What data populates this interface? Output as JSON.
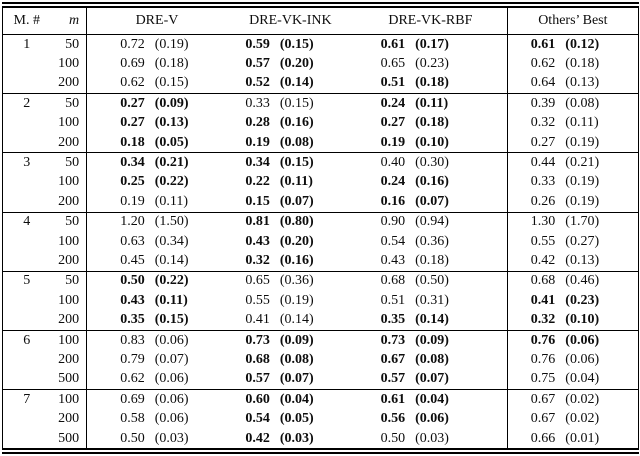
{
  "table": {
    "header": {
      "model_col": "M. #",
      "m_col": "m",
      "methods": [
        "DRE-V",
        "DRE-VK-INK",
        "DRE-VK-RBF"
      ],
      "others_col": "Others’ Best"
    },
    "groups": [
      {
        "model": "1",
        "rows": [
          {
            "m": "50",
            "cells": [
              {
                "value": "0.72",
                "std": "(0.19)",
                "bold": false
              },
              {
                "value": "0.59",
                "std": "(0.15)",
                "bold": true
              },
              {
                "value": "0.61",
                "std": "(0.17)",
                "bold": true
              },
              {
                "value": "0.61",
                "std": "(0.12)",
                "bold": true
              }
            ]
          },
          {
            "m": "100",
            "cells": [
              {
                "value": "0.69",
                "std": "(0.18)",
                "bold": false
              },
              {
                "value": "0.57",
                "std": "(0.20)",
                "bold": true
              },
              {
                "value": "0.65",
                "std": "(0.23)",
                "bold": false
              },
              {
                "value": "0.62",
                "std": "(0.18)",
                "bold": false
              }
            ]
          },
          {
            "m": "200",
            "cells": [
              {
                "value": "0.62",
                "std": "(0.15)",
                "bold": false
              },
              {
                "value": "0.52",
                "std": "(0.14)",
                "bold": true
              },
              {
                "value": "0.51",
                "std": "(0.18)",
                "bold": true
              },
              {
                "value": "0.64",
                "std": "(0.13)",
                "bold": false
              }
            ]
          }
        ]
      },
      {
        "model": "2",
        "rows": [
          {
            "m": "50",
            "cells": [
              {
                "value": "0.27",
                "std": "(0.09)",
                "bold": true
              },
              {
                "value": "0.33",
                "std": "(0.15)",
                "bold": false
              },
              {
                "value": "0.24",
                "std": "(0.11)",
                "bold": true
              },
              {
                "value": "0.39",
                "std": "(0.08)",
                "bold": false
              }
            ]
          },
          {
            "m": "100",
            "cells": [
              {
                "value": "0.27",
                "std": "(0.13)",
                "bold": true
              },
              {
                "value": "0.28",
                "std": "(0.16)",
                "bold": true
              },
              {
                "value": "0.27",
                "std": "(0.18)",
                "bold": true
              },
              {
                "value": "0.32",
                "std": "(0.11)",
                "bold": false
              }
            ]
          },
          {
            "m": "200",
            "cells": [
              {
                "value": "0.18",
                "std": "(0.05)",
                "bold": true
              },
              {
                "value": "0.19",
                "std": "(0.08)",
                "bold": true
              },
              {
                "value": "0.19",
                "std": "(0.10)",
                "bold": true
              },
              {
                "value": "0.27",
                "std": "(0.19)",
                "bold": false
              }
            ]
          }
        ]
      },
      {
        "model": "3",
        "rows": [
          {
            "m": "50",
            "cells": [
              {
                "value": "0.34",
                "std": "(0.21)",
                "bold": true
              },
              {
                "value": "0.34",
                "std": "(0.15)",
                "bold": true
              },
              {
                "value": "0.40",
                "std": "(0.30)",
                "bold": false
              },
              {
                "value": "0.44",
                "std": "(0.21)",
                "bold": false
              }
            ]
          },
          {
            "m": "100",
            "cells": [
              {
                "value": "0.25",
                "std": "(0.22)",
                "bold": true
              },
              {
                "value": "0.22",
                "std": "(0.11)",
                "bold": true
              },
              {
                "value": "0.24",
                "std": "(0.16)",
                "bold": true
              },
              {
                "value": "0.33",
                "std": "(0.19)",
                "bold": false
              }
            ]
          },
          {
            "m": "200",
            "cells": [
              {
                "value": "0.19",
                "std": "(0.11)",
                "bold": false
              },
              {
                "value": "0.15",
                "std": "(0.07)",
                "bold": true
              },
              {
                "value": "0.16",
                "std": "(0.07)",
                "bold": true
              },
              {
                "value": "0.26",
                "std": "(0.19)",
                "bold": false
              }
            ]
          }
        ]
      },
      {
        "model": "4",
        "rows": [
          {
            "m": "50",
            "cells": [
              {
                "value": "1.20",
                "std": "(1.50)",
                "bold": false
              },
              {
                "value": "0.81",
                "std": "(0.80)",
                "bold": true
              },
              {
                "value": "0.90",
                "std": "(0.94)",
                "bold": false
              },
              {
                "value": "1.30",
                "std": "(1.70)",
                "bold": false
              }
            ]
          },
          {
            "m": "100",
            "cells": [
              {
                "value": "0.63",
                "std": "(0.34)",
                "bold": false
              },
              {
                "value": "0.43",
                "std": "(0.20)",
                "bold": true
              },
              {
                "value": "0.54",
                "std": "(0.36)",
                "bold": false
              },
              {
                "value": "0.55",
                "std": "(0.27)",
                "bold": false
              }
            ]
          },
          {
            "m": "200",
            "cells": [
              {
                "value": "0.45",
                "std": "(0.14)",
                "bold": false
              },
              {
                "value": "0.32",
                "std": "(0.16)",
                "bold": true
              },
              {
                "value": "0.43",
                "std": "(0.18)",
                "bold": false
              },
              {
                "value": "0.42",
                "std": "(0.13)",
                "bold": false
              }
            ]
          }
        ]
      },
      {
        "model": "5",
        "rows": [
          {
            "m": "50",
            "cells": [
              {
                "value": "0.50",
                "std": "(0.22)",
                "bold": true
              },
              {
                "value": "0.65",
                "std": "(0.36)",
                "bold": false
              },
              {
                "value": "0.68",
                "std": "(0.50)",
                "bold": false
              },
              {
                "value": "0.68",
                "std": "(0.46)",
                "bold": false
              }
            ]
          },
          {
            "m": "100",
            "cells": [
              {
                "value": "0.43",
                "std": "(0.11)",
                "bold": true
              },
              {
                "value": "0.55",
                "std": "(0.19)",
                "bold": false
              },
              {
                "value": "0.51",
                "std": "(0.31)",
                "bold": false
              },
              {
                "value": "0.41",
                "std": "(0.23)",
                "bold": true
              }
            ]
          },
          {
            "m": "200",
            "cells": [
              {
                "value": "0.35",
                "std": "(0.15)",
                "bold": true
              },
              {
                "value": "0.41",
                "std": "(0.14)",
                "bold": false
              },
              {
                "value": "0.35",
                "std": "(0.14)",
                "bold": true
              },
              {
                "value": "0.32",
                "std": "(0.10)",
                "bold": true
              }
            ]
          }
        ]
      },
      {
        "model": "6",
        "rows": [
          {
            "m": "100",
            "cells": [
              {
                "value": "0.83",
                "std": "(0.06)",
                "bold": false
              },
              {
                "value": "0.73",
                "std": "(0.09)",
                "bold": true
              },
              {
                "value": "0.73",
                "std": "(0.09)",
                "bold": true
              },
              {
                "value": "0.76",
                "std": "(0.06)",
                "bold": true
              }
            ]
          },
          {
            "m": "200",
            "cells": [
              {
                "value": "0.79",
                "std": "(0.07)",
                "bold": false
              },
              {
                "value": "0.68",
                "std": "(0.08)",
                "bold": true
              },
              {
                "value": "0.67",
                "std": "(0.08)",
                "bold": true
              },
              {
                "value": "0.76",
                "std": "(0.06)",
                "bold": false
              }
            ]
          },
          {
            "m": "500",
            "cells": [
              {
                "value": "0.62",
                "std": "(0.06)",
                "bold": false
              },
              {
                "value": "0.57",
                "std": "(0.07)",
                "bold": true
              },
              {
                "value": "0.57",
                "std": "(0.07)",
                "bold": true
              },
              {
                "value": "0.75",
                "std": "(0.04)",
                "bold": false
              }
            ]
          }
        ]
      },
      {
        "model": "7",
        "rows": [
          {
            "m": "100",
            "cells": [
              {
                "value": "0.69",
                "std": "(0.06)",
                "bold": false
              },
              {
                "value": "0.60",
                "std": "(0.04)",
                "bold": true
              },
              {
                "value": "0.61",
                "std": "(0.04)",
                "bold": true
              },
              {
                "value": "0.67",
                "std": "(0.02)",
                "bold": false
              }
            ]
          },
          {
            "m": "200",
            "cells": [
              {
                "value": "0.58",
                "std": "(0.06)",
                "bold": false
              },
              {
                "value": "0.54",
                "std": "(0.05)",
                "bold": true
              },
              {
                "value": "0.56",
                "std": "(0.06)",
                "bold": true
              },
              {
                "value": "0.67",
                "std": "(0.02)",
                "bold": false
              }
            ]
          },
          {
            "m": "500",
            "cells": [
              {
                "value": "0.50",
                "std": "(0.03)",
                "bold": false
              },
              {
                "value": "0.42",
                "std": "(0.03)",
                "bold": true
              },
              {
                "value": "0.50",
                "std": "(0.03)",
                "bold": false
              },
              {
                "value": "0.66",
                "std": "(0.01)",
                "bold": false
              }
            ]
          }
        ]
      }
    ]
  }
}
